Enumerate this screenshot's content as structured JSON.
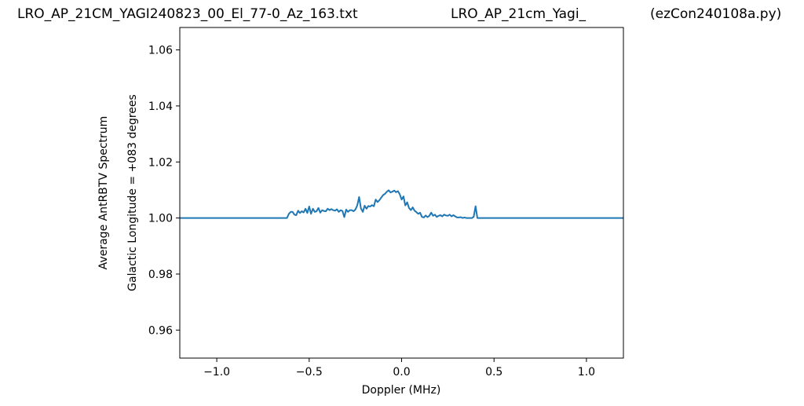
{
  "titles": {
    "left": "LRO_AP_21CM_YAGI240823_00_El_77-0_Az_163.txt",
    "middle": "LRO_AP_21cm_Yagi_",
    "right": "(ezCon240108a.py)"
  },
  "chart_data": {
    "type": "line",
    "xlabel": "Doppler (MHz)",
    "ylabel_lines": [
      "Average AntRBTV Spectrum",
      "Galactic Longitude = +083 degrees"
    ],
    "xlim": [
      -1.2,
      1.2
    ],
    "ylim": [
      0.95,
      1.068
    ],
    "xticks": [
      -1.0,
      -0.5,
      0.0,
      0.5,
      1.0
    ],
    "xtick_labels": [
      "−1.0",
      "−0.5",
      "0.0",
      "0.5",
      "1.0"
    ],
    "yticks": [
      0.96,
      0.98,
      1.0,
      1.02,
      1.04,
      1.06
    ],
    "ytick_labels": [
      "0.96",
      "0.98",
      "1.00",
      "1.02",
      "1.04",
      "1.06"
    ],
    "grid": false,
    "series": [
      {
        "color": "#1f77b4",
        "x": [
          -1.2,
          -0.62,
          -0.61,
          -0.6,
          -0.59,
          -0.58,
          -0.57,
          -0.56,
          -0.55,
          -0.54,
          -0.53,
          -0.52,
          -0.51,
          -0.5,
          -0.49,
          -0.48,
          -0.47,
          -0.46,
          -0.45,
          -0.44,
          -0.43,
          -0.42,
          -0.41,
          -0.4,
          -0.39,
          -0.38,
          -0.37,
          -0.36,
          -0.35,
          -0.34,
          -0.33,
          -0.32,
          -0.31,
          -0.3,
          -0.29,
          -0.28,
          -0.27,
          -0.26,
          -0.25,
          -0.24,
          -0.23,
          -0.22,
          -0.21,
          -0.2,
          -0.19,
          -0.18,
          -0.17,
          -0.16,
          -0.15,
          -0.14,
          -0.13,
          -0.12,
          -0.11,
          -0.1,
          -0.09,
          -0.08,
          -0.07,
          -0.06,
          -0.05,
          -0.04,
          -0.03,
          -0.02,
          -0.01,
          0.0,
          0.01,
          0.02,
          0.03,
          0.04,
          0.05,
          0.06,
          0.07,
          0.08,
          0.09,
          0.1,
          0.11,
          0.12,
          0.13,
          0.14,
          0.15,
          0.16,
          0.17,
          0.18,
          0.19,
          0.2,
          0.21,
          0.22,
          0.23,
          0.24,
          0.25,
          0.26,
          0.27,
          0.28,
          0.29,
          0.3,
          0.31,
          0.32,
          0.33,
          0.34,
          0.35,
          0.36,
          0.37,
          0.38,
          0.39,
          0.4,
          0.41,
          1.2
        ],
        "y": [
          1.0,
          1.0,
          1.0015,
          1.0022,
          1.0022,
          1.0012,
          1.001,
          1.0026,
          1.0018,
          1.0024,
          1.002,
          1.0033,
          1.0018,
          1.0041,
          1.0015,
          1.0033,
          1.0022,
          1.0024,
          1.0036,
          1.0019,
          1.0028,
          1.0025,
          1.0024,
          1.0033,
          1.0028,
          1.0032,
          1.0028,
          1.0026,
          1.0031,
          1.0022,
          1.0028,
          1.0025,
          1.0003,
          1.003,
          1.0022,
          1.0028,
          1.0028,
          1.0024,
          1.003,
          1.0045,
          1.0075,
          1.0034,
          1.0022,
          1.0044,
          1.0033,
          1.0043,
          1.0041,
          1.0046,
          1.0042,
          1.0066,
          1.0057,
          1.0064,
          1.0073,
          1.0082,
          1.0086,
          1.0094,
          1.0099,
          1.0091,
          1.0094,
          1.0098,
          1.0092,
          1.0096,
          1.0085,
          1.0066,
          1.0077,
          1.0045,
          1.0056,
          1.0036,
          1.0028,
          1.0038,
          1.0026,
          1.0021,
          1.0015,
          1.0019,
          1.0004,
          1.0002,
          1.0009,
          1.0003,
          1.0008,
          1.0019,
          1.0008,
          1.0012,
          1.0004,
          1.0008,
          1.001,
          1.0006,
          1.0012,
          1.0009,
          1.0008,
          1.0012,
          1.0006,
          1.001,
          1.0006,
          1.0002,
          1.0002,
          1.0003,
          1.0,
          1.0002,
          1.0,
          1.0,
          1.0,
          1.0,
          1.0004,
          1.0042,
          1.0,
          1.0
        ]
      }
    ]
  }
}
